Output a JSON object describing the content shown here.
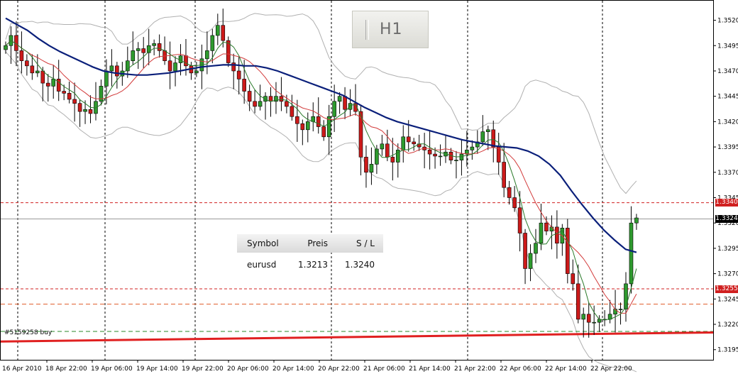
{
  "timeframe_badge": "H1",
  "order_panel": {
    "headers": [
      "Symbol",
      "Preis",
      "S / L"
    ],
    "row": [
      "eurusd",
      "1.3213",
      "1.3240"
    ]
  },
  "order_label": "#5159258 buy",
  "price_markers": {
    "current": "1.3324",
    "upper_level": "1.3340",
    "lower_level": "1.3255"
  },
  "colors": {
    "bull": "#2e9a2e",
    "bear": "#cc1a1a",
    "ma_slow": "#0a1f7a",
    "ma_mid": "#d23a3a",
    "ma_fast": "#2a7a2a",
    "bands": "#b0b0b0",
    "trendline": "#e02020",
    "level_dash": "#d02020",
    "entry_dash": "#2a8a2a",
    "marker_red": "#d02020",
    "marker_black": "#000000"
  },
  "chart_data": {
    "type": "candlestick",
    "symbol": "EURUSD",
    "timeframe": "H1",
    "y_ticks": [
      1.352,
      1.3495,
      1.347,
      1.3445,
      1.342,
      1.3395,
      1.337,
      1.3345,
      1.332,
      1.3295,
      1.327,
      1.3245,
      1.322,
      1.3195
    ],
    "ylim": [
      1.3185,
      1.354
    ],
    "x_labels": [
      "16 Apr 2010",
      "18 Apr 22:00",
      "19 Apr 06:00",
      "19 Apr 14:00",
      "19 Apr 22:00",
      "20 Apr 06:00",
      "20 Apr 14:00",
      "20 Apr 22:00",
      "21 Apr 06:00",
      "21 Apr 14:00",
      "21 Apr 22:00",
      "22 Apr 06:00",
      "22 Apr 14:00",
      "22 Apr 22:00"
    ],
    "levels": {
      "upper": 1.334,
      "current": 1.3324,
      "lower": 1.3255,
      "dashed_mid": 1.324,
      "entry": 1.3213
    },
    "trendline": {
      "start": 1.3203,
      "end": 1.3212
    },
    "close": [
      1.3495,
      1.3505,
      1.349,
      1.348,
      1.3475,
      1.3468,
      1.347,
      1.3458,
      1.3455,
      1.3462,
      1.345,
      1.3448,
      1.3442,
      1.3438,
      1.343,
      1.3432,
      1.3428,
      1.344,
      1.3455,
      1.347,
      1.3475,
      1.3465,
      1.347,
      1.348,
      1.349,
      1.3492,
      1.3488,
      1.3495,
      1.3497,
      1.349,
      1.348,
      1.347,
      1.3478,
      1.3485,
      1.3475,
      1.3468,
      1.347,
      1.3482,
      1.349,
      1.3505,
      1.3515,
      1.35,
      1.3478,
      1.347,
      1.3462,
      1.345,
      1.344,
      1.3435,
      1.344,
      1.3445,
      1.344,
      1.3445,
      1.344,
      1.3435,
      1.3425,
      1.3418,
      1.3412,
      1.342,
      1.3425,
      1.3415,
      1.3405,
      1.3425,
      1.344,
      1.3445,
      1.3432,
      1.3438,
      1.343,
      1.3385,
      1.337,
      1.3378,
      1.3393,
      1.3398,
      1.3385,
      1.338,
      1.3392,
      1.3405,
      1.34,
      1.3398,
      1.3395,
      1.3392,
      1.3388,
      1.3386,
      1.3386,
      1.339,
      1.3382,
      1.3382,
      1.3388,
      1.3392,
      1.3395,
      1.34,
      1.341,
      1.3412,
      1.3395,
      1.338,
      1.3355,
      1.3345,
      1.3335,
      1.331,
      1.3275,
      1.329,
      1.33,
      1.332,
      1.3312,
      1.3316,
      1.33,
      1.3315,
      1.327,
      1.326,
      1.3225,
      1.323,
      1.3222,
      1.3222,
      1.3225,
      1.3225,
      1.323,
      1.3235,
      1.3235,
      1.326,
      1.332,
      1.3325
    ],
    "ma_slow": [
      1.3522,
      1.3516,
      1.351,
      1.3502,
      1.3495,
      1.3489,
      1.3484,
      1.3479,
      1.3474,
      1.347,
      1.3468,
      1.3467,
      1.3466,
      1.3466,
      1.3467,
      1.3468,
      1.347,
      1.3472,
      1.3474,
      1.3475,
      1.3476,
      1.3476,
      1.3475,
      1.3475,
      1.3473,
      1.347,
      1.3466,
      1.3462,
      1.3458,
      1.3454,
      1.345,
      1.3446,
      1.344,
      1.3434,
      1.3429,
      1.3424,
      1.342,
      1.3417,
      1.3414,
      1.3411,
      1.3408,
      1.3405,
      1.3402,
      1.34,
      1.3398,
      1.3396,
      1.3395,
      1.3394,
      1.3391,
      1.3386,
      1.3378,
      1.3367,
      1.3352,
      1.3338,
      1.3325,
      1.3313,
      1.3303,
      1.3294,
      1.3291
    ]
  }
}
